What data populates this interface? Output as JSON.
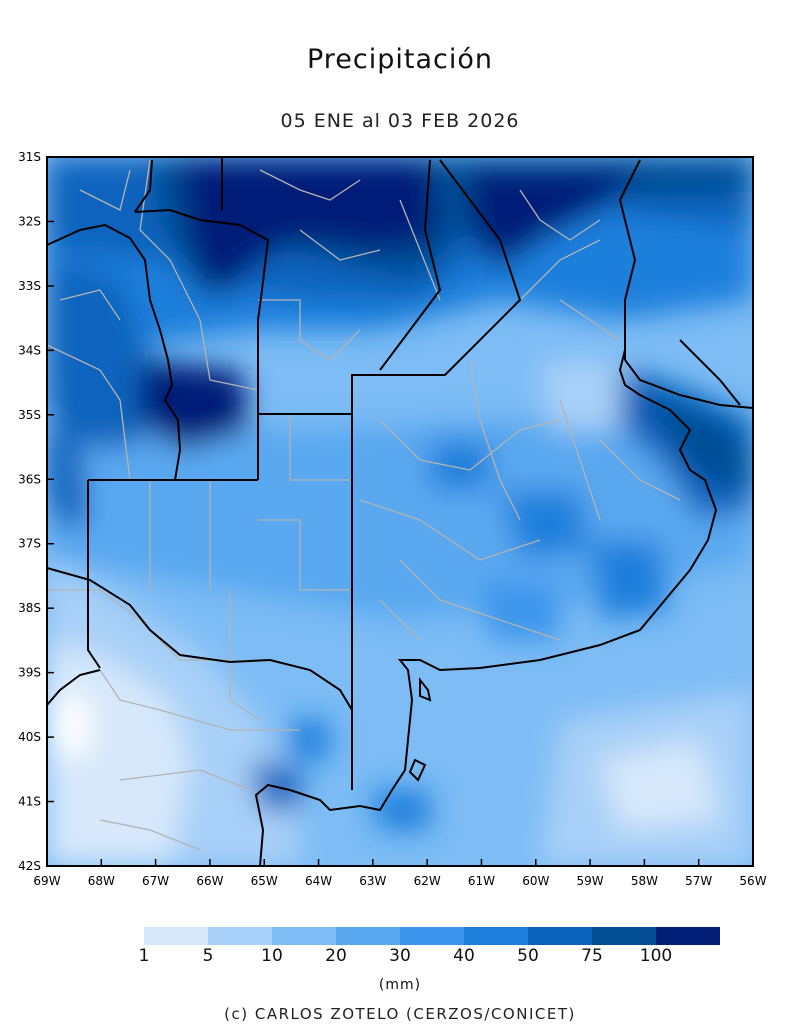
{
  "title": "Precipitación",
  "subtitle": "05 ENE al 03 FEB 2026",
  "map": {
    "lon_range": [
      -69,
      -56
    ],
    "lat_range": [
      -42,
      -31
    ],
    "x_tick_labels": [
      "69W",
      "68W",
      "67W",
      "66W",
      "65W",
      "64W",
      "63W",
      "62W",
      "61W",
      "60W",
      "59W",
      "58W",
      "57W",
      "56W"
    ],
    "y_tick_labels": [
      "31S",
      "32S",
      "33S",
      "34S",
      "35S",
      "36S",
      "37S",
      "38S",
      "39S",
      "40S",
      "41S",
      "42S"
    ]
  },
  "legend": {
    "bins": [
      {
        "color": "#d7e8fb"
      },
      {
        "color": "#a9d0f8"
      },
      {
        "color": "#7dbcf5"
      },
      {
        "color": "#5aa8f0"
      },
      {
        "color": "#3a94ec"
      },
      {
        "color": "#1f7fdc"
      },
      {
        "color": "#0a63bd"
      },
      {
        "color": "#044e96"
      },
      {
        "color": "#031f78"
      }
    ],
    "labels": [
      "1",
      "5",
      "10",
      "20",
      "30",
      "40",
      "50",
      "75",
      "100"
    ]
  },
  "units_label": "(mm)",
  "credit": "(c) CARLOS ZOTELO (CERZOS/CONICET)"
}
